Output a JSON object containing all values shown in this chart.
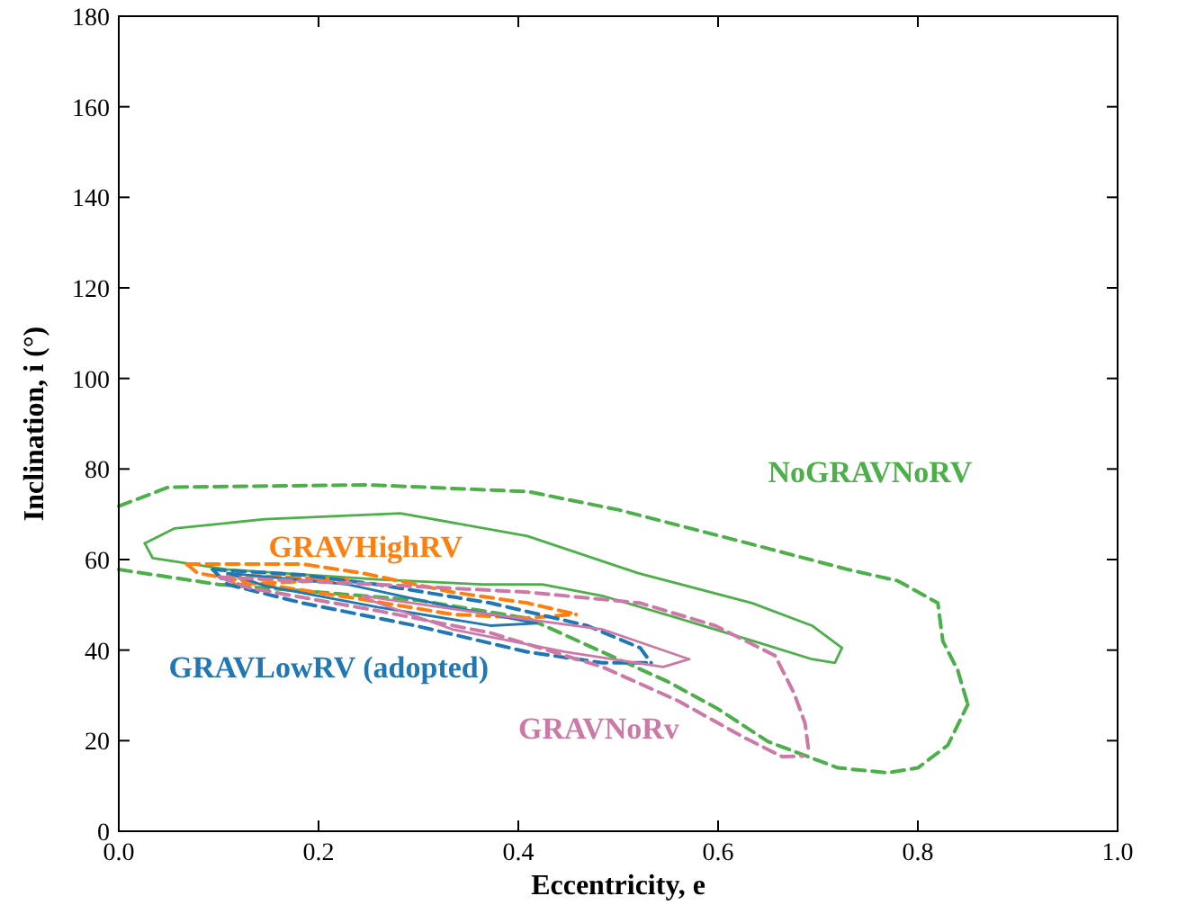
{
  "chart_data": {
    "type": "line",
    "xlabel": "Eccentricity, e",
    "ylabel": "Inclination, i (°)",
    "xlim": [
      0,
      1
    ],
    "ylim": [
      0,
      180
    ],
    "xticks": [
      {
        "value": 0,
        "label": "0.0"
      },
      0.2,
      0.4,
      0.6,
      0.8,
      {
        "value": 1,
        "label": "1.0"
      }
    ],
    "yticks": [
      0,
      20,
      40,
      60,
      80,
      100,
      120,
      140,
      160,
      180
    ],
    "grid": false,
    "marker": "none",
    "series": [
      {
        "name": "NoGRAVNoRV",
        "color": "#4daf4a",
        "line_style": "dashed",
        "x": [
          0,
          0.05,
          0.25,
          0.41,
          0.5,
          0.63,
          0.73,
          0.78,
          0.82,
          0.825,
          0.84,
          0.85
        ],
        "values": [
          71.8,
          76,
          76.5,
          75,
          71,
          63.6,
          57.8,
          55.3,
          50.4,
          42,
          35.5,
          28
        ]
      },
      {
        "color": "#4daf4a",
        "line_style": "dashed",
        "x": [
          0,
          0.1,
          0.2,
          0.3,
          0.41,
          0.48,
          0.55,
          0.6,
          0.65,
          0.72,
          0.77,
          0.8,
          0.83,
          0.85
        ],
        "values": [
          57.8,
          54.5,
          52.8,
          51,
          47,
          40,
          33,
          27,
          19.8,
          14,
          12.9,
          14,
          19,
          28
        ]
      },
      {
        "color": "#4daf4a",
        "line_style": "solid",
        "x": [
          0.026,
          0.056,
          0.146,
          0.282,
          0.409,
          0.52,
          0.634,
          0.694,
          0.724
        ],
        "values": [
          63.6,
          66.9,
          68.9,
          70.2,
          65.2,
          57,
          50.4,
          45.4,
          40.5
        ]
      },
      {
        "color": "#4daf4a",
        "line_style": "solid",
        "x": [
          0.026,
          0.034,
          0.109,
          0.259,
          0.364,
          0.424,
          0.484,
          0.559,
          0.634,
          0.694,
          0.717,
          0.724
        ],
        "values": [
          63.6,
          60.3,
          57.8,
          55.6,
          54.5,
          54.5,
          52,
          47.1,
          42.1,
          38,
          37.2,
          40.5
        ]
      },
      {
        "name": "GRAVHighRV",
        "color": "#ff7f0e",
        "line_style": "dashed",
        "x": [
          0.068,
          0.184,
          0.244,
          0.334,
          0.409,
          0.458
        ],
        "values": [
          59,
          59,
          57,
          52.8,
          50.4,
          47.9
        ]
      },
      {
        "color": "#ff7f0e",
        "line_style": "dashed",
        "x": [
          0.068,
          0.079,
          0.146,
          0.244,
          0.334,
          0.409,
          0.458
        ],
        "values": [
          59,
          57,
          54.5,
          51.2,
          47.9,
          47.1,
          47.9
        ]
      },
      {
        "color": "#ff7f0e",
        "line_style": "dashed",
        "x": [
          0.109,
          0.229
        ],
        "values": [
          56.6,
          55.6
        ]
      },
      {
        "color": "#ff7f0e",
        "line_style": "dashed",
        "x": [
          0.109,
          0.116,
          0.229
        ],
        "values": [
          56.6,
          54.5,
          55.6
        ]
      },
      {
        "name": "GRAVLowRV (adopted)",
        "color": "#1f77b4",
        "line_style": "dashed",
        "x": [
          0.094,
          0.184,
          0.259,
          0.372,
          0.469,
          0.522,
          0.533
        ],
        "values": [
          57.8,
          56.6,
          54.5,
          50.4,
          45.4,
          40.5,
          37.2
        ]
      },
      {
        "color": "#1f77b4",
        "line_style": "dashed",
        "x": [
          0.094,
          0.109,
          0.184,
          0.297,
          0.409,
          0.484,
          0.533
        ],
        "values": [
          57.8,
          54.5,
          50.4,
          45.4,
          39.6,
          37.2,
          37.2
        ]
      },
      {
        "color": "#1f77b4",
        "line_style": "solid",
        "x": [
          0.109,
          0.229,
          0.334,
          0.418
        ],
        "values": [
          57,
          54.5,
          49.5,
          45.9
        ]
      },
      {
        "color": "#1f77b4",
        "line_style": "solid",
        "x": [
          0.109,
          0.146,
          0.259,
          0.372,
          0.418
        ],
        "values": [
          57,
          54.2,
          49.5,
          45.4,
          45.9
        ]
      },
      {
        "name": "GRAVNoRv",
        "color": "#cc79a7",
        "line_style": "dashed",
        "x": [
          0.101,
          0.259,
          0.409,
          0.522,
          0.597,
          0.657,
          0.676,
          0.687,
          0.691
        ],
        "values": [
          56.1,
          54.5,
          52.8,
          50.4,
          45.4,
          38.8,
          30.5,
          23.9,
          17.3
        ]
      },
      {
        "color": "#cc79a7",
        "line_style": "dashed",
        "x": [
          0.101,
          0.131,
          0.259,
          0.372,
          0.484,
          0.559,
          0.627,
          0.664,
          0.685
        ],
        "values": [
          56.1,
          53.7,
          48.7,
          43.8,
          36.3,
          28.9,
          20.6,
          16.5,
          16.6
        ]
      },
      {
        "color": "#cc79a7",
        "line_style": "solid",
        "x": [
          0.244,
          0.372,
          0.484,
          0.571
        ],
        "values": [
          52,
          47.9,
          44.6,
          38
        ]
      },
      {
        "color": "#cc79a7",
        "line_style": "solid",
        "x": [
          0.244,
          0.252,
          0.334,
          0.447,
          0.545,
          0.571
        ],
        "values": [
          52,
          51,
          44.6,
          39.6,
          36.3,
          38
        ]
      }
    ]
  }
}
